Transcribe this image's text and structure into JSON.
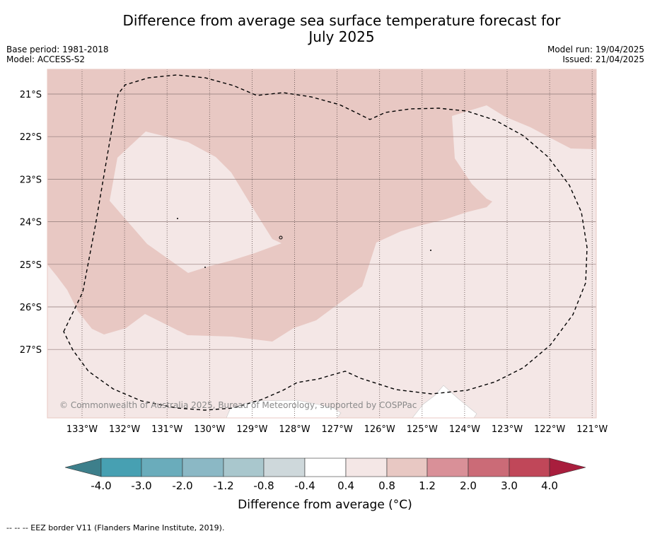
{
  "title_line1": "Difference from average sea surface temperature forecast for",
  "title_line2": "July 2025",
  "meta": {
    "base_period": "Base period: 1981-2018",
    "model": "Model: ACCESS-S2",
    "model_run": "Model run: 19/04/2025",
    "issued": "Issued: 21/04/2025"
  },
  "map": {
    "lat_labels": [
      "21°S",
      "22°S",
      "23°S",
      "24°S",
      "25°S",
      "26°S",
      "27°S"
    ],
    "lon_labels": [
      "133°W",
      "132°W",
      "131°W",
      "130°W",
      "129°W",
      "128°W",
      "127°W",
      "126°W",
      "125°W",
      "124°W",
      "123°W",
      "122°W",
      "121°W"
    ],
    "copyright": "© Commonwealth of Australia 2025, Bureau of Meteorology, supported by COSPPac",
    "colors": {
      "band_0.8_1.2": "#e8c8c3",
      "band_0.4_0.8": "#f4e7e6",
      "land": "#ffffff",
      "eez_line": "#000000"
    }
  },
  "colorbar": {
    "ticks": [
      "-4.0",
      "-3.0",
      "-2.0",
      "-1.2",
      "-0.8",
      "-0.4",
      "0.4",
      "0.8",
      "1.2",
      "2.0",
      "3.0",
      "4.0"
    ],
    "colors": [
      "#3d7f8b",
      "#47a0b2",
      "#6aacbb",
      "#8bb8c5",
      "#a9c7cd",
      "#ced8db",
      "#ffffff",
      "#f4e7e6",
      "#e8c8c3",
      "#d99098",
      "#cb6b77",
      "#c04759",
      "#a81e3d"
    ],
    "label": "Difference from average (°C)"
  },
  "footnote": "--  --  -- EEZ border V11 (Flanders Marine Institute, 2019)."
}
